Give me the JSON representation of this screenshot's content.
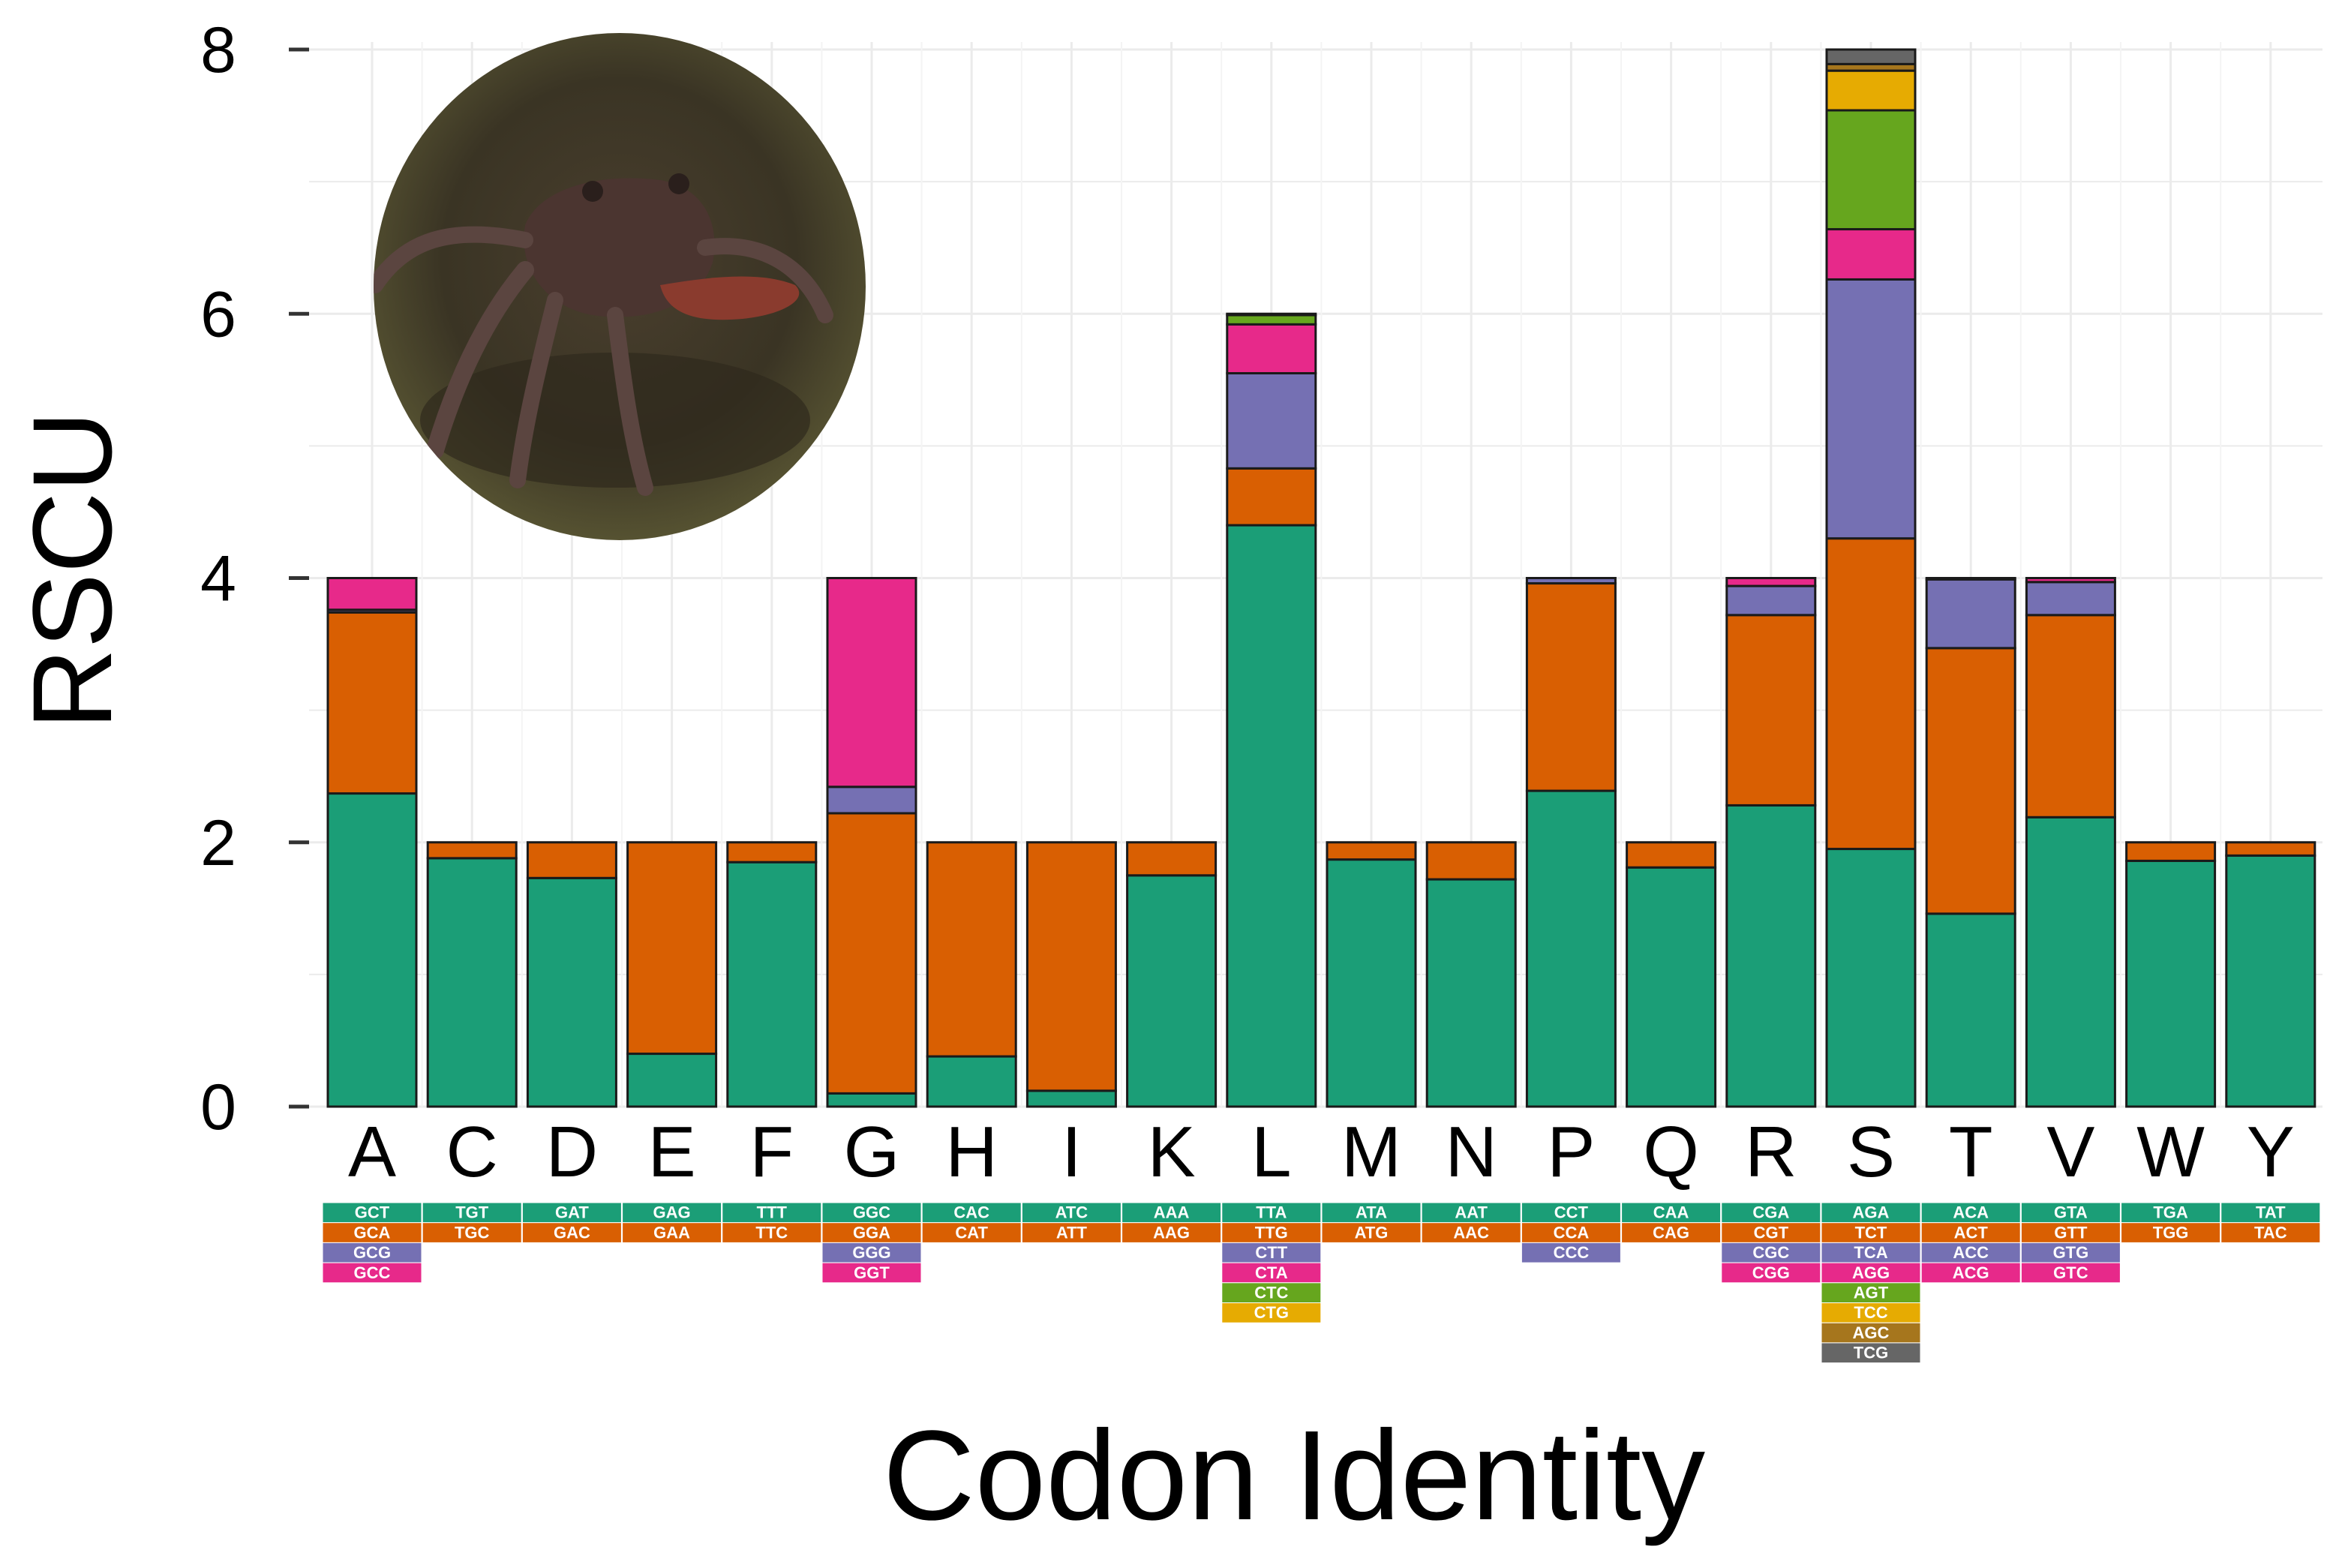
{
  "chart_data": {
    "type": "bar",
    "stacked": true,
    "xlabel": "Codon Identity",
    "ylabel": "RSCU",
    "ylim": [
      0,
      8
    ],
    "yticks": [
      "0",
      "2",
      "4",
      "6",
      "8"
    ],
    "grid": true,
    "colors": [
      "#1b9e77",
      "#d95f02",
      "#7570b3",
      "#e7298a",
      "#66a61e",
      "#e6ab02",
      "#a6761d",
      "#666666"
    ],
    "categories": [
      "A",
      "C",
      "D",
      "E",
      "F",
      "G",
      "H",
      "I",
      "K",
      "L",
      "M",
      "N",
      "P",
      "Q",
      "R",
      "S",
      "T",
      "V",
      "W",
      "Y"
    ],
    "stacks": [
      {
        "aa": "A",
        "codons": [
          "GCT",
          "GCA",
          "GCG",
          "GCC"
        ],
        "values": [
          2.37,
          1.37,
          0.02,
          0.24
        ]
      },
      {
        "aa": "C",
        "codons": [
          "TGT",
          "TGC"
        ],
        "values": [
          1.88,
          0.12
        ]
      },
      {
        "aa": "D",
        "codons": [
          "GAT",
          "GAC"
        ],
        "values": [
          1.73,
          0.27
        ]
      },
      {
        "aa": "E",
        "codons": [
          "GAG",
          "GAA"
        ],
        "values": [
          0.4,
          1.6
        ]
      },
      {
        "aa": "F",
        "codons": [
          "TTT",
          "TTC"
        ],
        "values": [
          1.85,
          0.15
        ]
      },
      {
        "aa": "G",
        "codons": [
          "GGC",
          "GGA",
          "GGG",
          "GGT"
        ],
        "values": [
          0.1,
          2.12,
          0.2,
          1.58
        ]
      },
      {
        "aa": "H",
        "codons": [
          "CAC",
          "CAT"
        ],
        "values": [
          0.38,
          1.62
        ]
      },
      {
        "aa": "I",
        "codons": [
          "ATC",
          "ATT"
        ],
        "values": [
          0.12,
          1.88
        ]
      },
      {
        "aa": "K",
        "codons": [
          "AAA",
          "AAG"
        ],
        "values": [
          1.75,
          0.25
        ]
      },
      {
        "aa": "L",
        "codons": [
          "TTA",
          "TTG",
          "CTT",
          "CTA",
          "CTC",
          "CTG"
        ],
        "values": [
          4.4,
          0.43,
          0.72,
          0.37,
          0.07,
          0.01
        ]
      },
      {
        "aa": "M",
        "codons": [
          "ATA",
          "ATG"
        ],
        "values": [
          1.87,
          0.13
        ]
      },
      {
        "aa": "N",
        "codons": [
          "AAT",
          "AAC"
        ],
        "values": [
          1.72,
          0.28
        ]
      },
      {
        "aa": "P",
        "codons": [
          "CCT",
          "CCA",
          "CCC"
        ],
        "values": [
          2.39,
          1.57,
          0.04
        ]
      },
      {
        "aa": "Q",
        "codons": [
          "CAA",
          "CAG"
        ],
        "values": [
          1.81,
          0.19
        ]
      },
      {
        "aa": "R",
        "codons": [
          "CGA",
          "CGT",
          "CGC",
          "CGG"
        ],
        "values": [
          2.28,
          1.44,
          0.22,
          0.06
        ]
      },
      {
        "aa": "S",
        "codons": [
          "AGA",
          "TCT",
          "TCA",
          "AGG",
          "AGT",
          "TCC",
          "AGC",
          "TCG"
        ],
        "values": [
          1.95,
          2.35,
          1.96,
          0.38,
          0.9,
          0.3,
          0.05,
          0.11
        ]
      },
      {
        "aa": "T",
        "codons": [
          "ACA",
          "ACT",
          "ACC",
          "ACG"
        ],
        "values": [
          1.46,
          2.01,
          0.52,
          0.01
        ]
      },
      {
        "aa": "V",
        "codons": [
          "GTA",
          "GTT",
          "GTG",
          "GTC"
        ],
        "values": [
          2.19,
          1.53,
          0.25,
          0.03
        ]
      },
      {
        "aa": "W",
        "codons": [
          "TGA",
          "TGG"
        ],
        "values": [
          1.86,
          0.14
        ]
      },
      {
        "aa": "Y",
        "codons": [
          "TAT",
          "TAC"
        ],
        "values": [
          1.9,
          0.1
        ]
      }
    ]
  },
  "inset_photo": {
    "subject": "crab-photo"
  }
}
